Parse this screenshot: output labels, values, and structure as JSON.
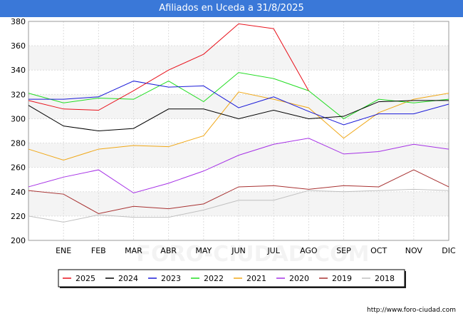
{
  "title": "Afiliados en Uceda a 31/8/2025",
  "watermark": "FORO-CIUDAD.COM",
  "url": "http://www.foro-ciudad.com",
  "chart_data": {
    "type": "line",
    "title": "Afiliados en Uceda a 31/8/2025",
    "categories": [
      "",
      "ENE",
      "FEB",
      "MAR",
      "ABR",
      "MAY",
      "JUN",
      "JUL",
      "AGO",
      "SEP",
      "OCT",
      "NOV",
      "DIC"
    ],
    "ylim": [
      200,
      380
    ],
    "yticks": [
      200,
      220,
      240,
      260,
      280,
      300,
      320,
      340,
      360,
      380
    ],
    "grid": true,
    "legend_position": "bottom",
    "series": [
      {
        "name": "2025",
        "color": "#e8101a",
        "values": [
          315,
          308,
          307,
          323,
          340,
          353,
          378,
          374,
          323,
          null,
          null,
          null,
          null
        ]
      },
      {
        "name": "2024",
        "color": "#000000",
        "values": [
          311,
          294,
          290,
          292,
          308,
          308,
          300,
          307,
          300,
          302,
          314,
          315,
          315
        ]
      },
      {
        "name": "2023",
        "color": "#1a1ad8",
        "values": [
          316,
          316,
          318,
          331,
          326,
          327,
          309,
          318,
          306,
          295,
          304,
          304,
          312
        ]
      },
      {
        "name": "2022",
        "color": "#22dd22",
        "values": [
          321,
          313,
          317,
          316,
          331,
          314,
          338,
          333,
          323,
          300,
          316,
          313,
          316
        ]
      },
      {
        "name": "2021",
        "color": "#f0a818",
        "values": [
          275,
          266,
          275,
          278,
          277,
          286,
          322,
          316,
          309,
          284,
          305,
          316,
          321
        ]
      },
      {
        "name": "2020",
        "color": "#a632e6",
        "values": [
          244,
          252,
          258,
          239,
          247,
          257,
          270,
          279,
          284,
          271,
          273,
          279,
          275
        ]
      },
      {
        "name": "2019",
        "color": "#a83232",
        "values": [
          241,
          238,
          222,
          228,
          226,
          230,
          244,
          245,
          242,
          245,
          244,
          258,
          244
        ]
      },
      {
        "name": "2018",
        "color": "#c0c0c0",
        "values": [
          220,
          215,
          221,
          219,
          219,
          225,
          233,
          233,
          241,
          240,
          241,
          242,
          241
        ]
      }
    ]
  }
}
